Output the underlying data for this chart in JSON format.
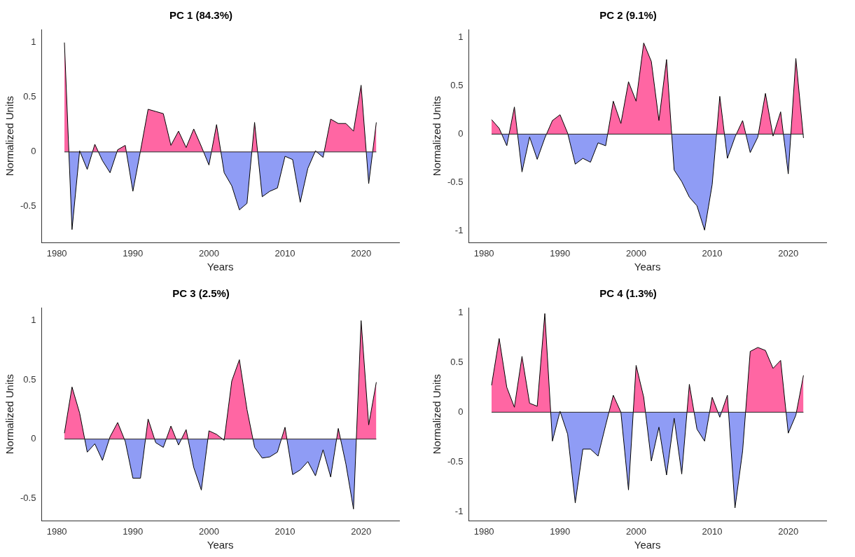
{
  "chart_data": [
    {
      "type": "area",
      "title": "PC 1 (84.3%)",
      "ref_lines": [
        {
          "axis": "y",
          "value": 0
        }
      ],
      "xlabel": "Years",
      "ylabel": "Normalized Units",
      "xlim": [
        1978,
        2025
      ],
      "xticks": [
        1980,
        1990,
        2000,
        2010,
        2020
      ],
      "ylim": [
        -0.83,
        1.12
      ],
      "yticks": [
        -0.5,
        0,
        0.5,
        1
      ],
      "grid": false,
      "legend": false,
      "x": [
        1981,
        1982,
        1983,
        1984,
        1985,
        1986,
        1987,
        1988,
        1989,
        1990,
        1991,
        1992,
        1993,
        1994,
        1995,
        1996,
        1997,
        1998,
        1999,
        2000,
        2001,
        2002,
        2003,
        2004,
        2005,
        2006,
        2007,
        2008,
        2009,
        2010,
        2011,
        2012,
        2013,
        2014,
        2015,
        2016,
        2017,
        2018,
        2019,
        2020,
        2021,
        2022
      ],
      "series": [
        {
          "values": [
            1.0,
            -0.71,
            0.01,
            -0.16,
            0.07,
            -0.08,
            -0.19,
            0.02,
            0.06,
            -0.36,
            0.01,
            0.39,
            0.37,
            0.35,
            0.06,
            0.19,
            0.04,
            0.21,
            0.05,
            -0.12,
            0.25,
            -0.19,
            -0.31,
            -0.53,
            -0.47,
            0.27,
            -0.41,
            -0.36,
            -0.33,
            -0.04,
            -0.07,
            -0.46,
            -0.15,
            0.01,
            -0.05,
            0.3,
            0.26,
            0.26,
            0.19,
            0.61,
            -0.29,
            0.27
          ],
          "colors": [
            "#ff66a3",
            "#8f9cf5",
            "#ff66a3",
            "#8f9cf5",
            "#ff66a3",
            "#8f9cf5",
            "#8f9cf5",
            "#ff66a3",
            "#ff66a3",
            "#8f9cf5",
            "#ff66a3",
            "#ff66a3",
            "#ff66a3",
            "#ff66a3",
            "#ff66a3",
            "#ff66a3",
            "#ff66a3",
            "#ff66a3",
            "#ff66a3",
            "#8f9cf5",
            "#ff66a3",
            "#8f9cf5",
            "#8f9cf5",
            "#8f9cf5",
            "#8f9cf5",
            "#ff66a3",
            "#8f9cf5",
            "#8f9cf5",
            "#8f9cf5",
            "#8f9cf5",
            "#8f9cf5",
            "#8f9cf5",
            "#8f9cf5",
            "#ff66a3",
            "#8f9cf5",
            "#ff66a3",
            "#ff66a3",
            "#ff66a3",
            "#ff66a3",
            "#ff66a3",
            "#8f9cf5",
            "#ff66a3"
          ]
        }
      ]
    },
    {
      "type": "area",
      "title": "PC 2 (9.1%)",
      "ref_lines": [
        {
          "axis": "y",
          "value": 0
        }
      ],
      "xlabel": "Years",
      "ylabel": "Normalized Units",
      "xlim": [
        1978,
        2025
      ],
      "xticks": [
        1980,
        1990,
        2000,
        2010,
        2020
      ],
      "ylim": [
        -1.12,
        1.08
      ],
      "yticks": [
        -1,
        -0.5,
        0,
        0.5,
        1
      ],
      "grid": false,
      "legend": false,
      "x": [
        1981,
        1982,
        1983,
        1984,
        1985,
        1986,
        1987,
        1988,
        1989,
        1990,
        1991,
        1992,
        1993,
        1994,
        1995,
        1996,
        1997,
        1998,
        1999,
        2000,
        2001,
        2002,
        2003,
        2004,
        2005,
        2006,
        2007,
        2008,
        2009,
        2010,
        2011,
        2012,
        2013,
        2014,
        2015,
        2016,
        2017,
        2018,
        2019,
        2020,
        2021,
        2022
      ],
      "series": [
        {
          "values": [
            0.15,
            0.06,
            -0.12,
            0.28,
            -0.39,
            -0.03,
            -0.26,
            -0.04,
            0.14,
            0.2,
            0.01,
            -0.31,
            -0.25,
            -0.29,
            -0.09,
            -0.12,
            0.34,
            0.11,
            0.54,
            0.34,
            0.94,
            0.75,
            0.14,
            0.77,
            -0.37,
            -0.49,
            -0.65,
            -0.74,
            -0.99,
            -0.52,
            0.39,
            -0.25,
            -0.03,
            0.14,
            -0.19,
            -0.03,
            0.42,
            -0.02,
            0.23,
            -0.41,
            0.78,
            -0.04
          ],
          "colors": [
            "#ff66a3",
            "#ff66a3",
            "#8f9cf5",
            "#ff66a3",
            "#8f9cf5",
            "#8f9cf5",
            "#8f9cf5",
            "#8f9cf5",
            "#ff66a3",
            "#ff66a3",
            "#ff66a3",
            "#8f9cf5",
            "#8f9cf5",
            "#8f9cf5",
            "#8f9cf5",
            "#8f9cf5",
            "#ff66a3",
            "#ff66a3",
            "#ff66a3",
            "#ff66a3",
            "#ff66a3",
            "#ff66a3",
            "#ff66a3",
            "#ff66a3",
            "#8f9cf5",
            "#8f9cf5",
            "#8f9cf5",
            "#8f9cf5",
            "#8f9cf5",
            "#8f9cf5",
            "#ff66a3",
            "#8f9cf5",
            "#8f9cf5",
            "#ff66a3",
            "#8f9cf5",
            "#8f9cf5",
            "#ff66a3",
            "#8f9cf5",
            "#ff66a3",
            "#8f9cf5",
            "#ff66a3",
            "#8f9cf5"
          ]
        }
      ]
    },
    {
      "type": "area",
      "title": "PC 3 (2.5%)",
      "ref_lines": [
        {
          "axis": "y",
          "value": 0
        }
      ],
      "xlabel": "Years",
      "ylabel": "Normalized Units",
      "xlim": [
        1978,
        2025
      ],
      "xticks": [
        1980,
        1990,
        2000,
        2010,
        2020
      ],
      "ylim": [
        -0.69,
        1.11
      ],
      "yticks": [
        -0.5,
        0,
        0.5,
        1
      ],
      "grid": false,
      "legend": false,
      "x": [
        1981,
        1982,
        1983,
        1984,
        1985,
        1986,
        1987,
        1988,
        1989,
        1990,
        1991,
        1992,
        1993,
        1994,
        1995,
        1996,
        1997,
        1998,
        1999,
        2000,
        2001,
        2002,
        2003,
        2004,
        2005,
        2006,
        2007,
        2008,
        2009,
        2010,
        2011,
        2012,
        2013,
        2014,
        2015,
        2016,
        2017,
        2018,
        2019,
        2020,
        2021,
        2022
      ],
      "series": [
        {
          "values": [
            0.05,
            0.44,
            0.22,
            -0.11,
            -0.04,
            -0.18,
            0.02,
            0.14,
            -0.02,
            -0.33,
            -0.33,
            0.17,
            -0.03,
            -0.07,
            0.11,
            -0.05,
            0.08,
            -0.24,
            -0.43,
            0.07,
            0.04,
            -0.01,
            0.49,
            0.67,
            0.25,
            -0.07,
            -0.16,
            -0.15,
            -0.11,
            0.1,
            -0.3,
            -0.26,
            -0.19,
            -0.31,
            -0.09,
            -0.32,
            0.09,
            -0.21,
            -0.59,
            1.0,
            0.12,
            0.48
          ],
          "colors": [
            "#ff66a3",
            "#ff66a3",
            "#ff66a3",
            "#8f9cf5",
            "#8f9cf5",
            "#8f9cf5",
            "#ff66a3",
            "#ff66a3",
            "#8f9cf5",
            "#8f9cf5",
            "#8f9cf5",
            "#ff66a3",
            "#8f9cf5",
            "#8f9cf5",
            "#ff66a3",
            "#8f9cf5",
            "#ff66a3",
            "#8f9cf5",
            "#8f9cf5",
            "#ff66a3",
            "#ff66a3",
            "#8f9cf5",
            "#ff66a3",
            "#ff66a3",
            "#ff66a3",
            "#8f9cf5",
            "#8f9cf5",
            "#8f9cf5",
            "#8f9cf5",
            "#ff66a3",
            "#8f9cf5",
            "#8f9cf5",
            "#8f9cf5",
            "#8f9cf5",
            "#8f9cf5",
            "#8f9cf5",
            "#ff66a3",
            "#8f9cf5",
            "#8f9cf5",
            "#ff66a3",
            "#ff66a3",
            "#ff66a3"
          ]
        }
      ]
    },
    {
      "type": "area",
      "title": "PC 4 (1.3%)",
      "ref_lines": [
        {
          "axis": "y",
          "value": 0
        }
      ],
      "xlabel": "Years",
      "ylabel": "Normalized Units",
      "xlim": [
        1978,
        2025
      ],
      "xticks": [
        1980,
        1990,
        2000,
        2010,
        2020
      ],
      "ylim": [
        -1.09,
        1.05
      ],
      "yticks": [
        -1,
        -0.5,
        0,
        0.5,
        1
      ],
      "grid": false,
      "legend": false,
      "x": [
        1981,
        1982,
        1983,
        1984,
        1985,
        1986,
        1987,
        1988,
        1989,
        1990,
        1991,
        1992,
        1993,
        1994,
        1995,
        1996,
        1997,
        1998,
        1999,
        2000,
        2001,
        2002,
        2003,
        2004,
        2005,
        2006,
        2007,
        2008,
        2009,
        2010,
        2011,
        2012,
        2013,
        2014,
        2015,
        2016,
        2017,
        2018,
        2019,
        2020,
        2021,
        2022
      ],
      "series": [
        {
          "values": [
            0.27,
            0.74,
            0.25,
            0.05,
            0.56,
            0.09,
            0.06,
            0.99,
            -0.29,
            0.01,
            -0.22,
            -0.91,
            -0.37,
            -0.37,
            -0.44,
            -0.13,
            0.17,
            0.0,
            -0.78,
            0.47,
            0.15,
            -0.49,
            -0.15,
            -0.63,
            -0.06,
            -0.62,
            0.28,
            -0.17,
            -0.29,
            0.15,
            -0.05,
            0.17,
            -0.96,
            -0.39,
            0.61,
            0.65,
            0.62,
            0.44,
            0.52,
            -0.21,
            -0.03,
            0.37
          ],
          "colors": [
            "#ff66a3",
            "#ff66a3",
            "#ff66a3",
            "#ff66a3",
            "#ff66a3",
            "#ff66a3",
            "#ff66a3",
            "#ff66a3",
            "#8f9cf5",
            "#ff66a3",
            "#8f9cf5",
            "#8f9cf5",
            "#8f9cf5",
            "#8f9cf5",
            "#8f9cf5",
            "#8f9cf5",
            "#ff66a3",
            "#ff66a3",
            "#8f9cf5",
            "#ff66a3",
            "#ff66a3",
            "#8f9cf5",
            "#8f9cf5",
            "#8f9cf5",
            "#8f9cf5",
            "#8f9cf5",
            "#ff66a3",
            "#8f9cf5",
            "#8f9cf5",
            "#ff66a3",
            "#8f9cf5",
            "#ff66a3",
            "#8f9cf5",
            "#8f9cf5",
            "#ff66a3",
            "#ff66a3",
            "#ff66a3",
            "#ff66a3",
            "#ff66a3",
            "#8f9cf5",
            "#8f9cf5",
            "#ff66a3"
          ]
        }
      ]
    }
  ]
}
